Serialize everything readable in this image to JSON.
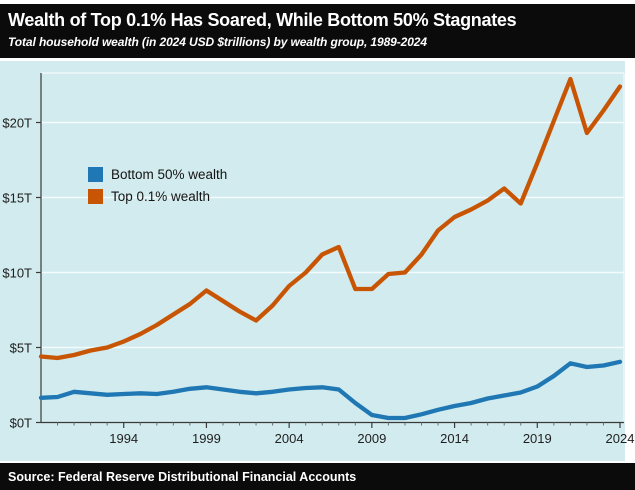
{
  "header": {
    "title": "Wealth of Top 0.1% Has Soared, While Bottom 50% Stagnates",
    "subtitle": "Total household wealth (in 2024 USD $trillions) by wealth group, 1989-2024"
  },
  "footer": {
    "source": "Source: Federal Reserve Distributional Financial Accounts"
  },
  "colors": {
    "plot_background": "#d2ebee",
    "grid": "#f4fbfc",
    "spine": "#3a3a3a",
    "bottom50": "#1f77b4",
    "top01": "#c85504",
    "bar_background": "#0b0b0b",
    "tick_text": "#1f1f1f"
  },
  "chart_data": {
    "type": "line",
    "title": "Wealth of Top 0.1% Has Soared, While Bottom 50% Stagnates",
    "subtitle": "Total household wealth (in 2024 USD $trillions) by wealth group, 1989-2024",
    "xlabel": "",
    "ylabel": "",
    "grid": true,
    "legend_position": "upper left inside",
    "xlim": [
      1989,
      2024
    ],
    "ylim": [
      0,
      23.5
    ],
    "x": [
      1989,
      1990,
      1991,
      1992,
      1993,
      1994,
      1995,
      1996,
      1997,
      1998,
      1999,
      2000,
      2001,
      2002,
      2003,
      2004,
      2005,
      2006,
      2007,
      2008,
      2009,
      2010,
      2011,
      2012,
      2013,
      2014,
      2015,
      2016,
      2017,
      2018,
      2019,
      2020,
      2021,
      2022,
      2023,
      2024
    ],
    "series": [
      {
        "name": "Bottom 50% wealth",
        "color": "#1f77b4",
        "values": [
          1.65,
          1.7,
          2.05,
          1.95,
          1.85,
          1.9,
          1.95,
          1.9,
          2.05,
          2.25,
          2.35,
          2.2,
          2.05,
          1.95,
          2.05,
          2.2,
          2.3,
          2.35,
          2.2,
          1.3,
          0.5,
          0.3,
          0.3,
          0.55,
          0.85,
          1.1,
          1.3,
          1.6,
          1.8,
          2.0,
          2.4,
          3.1,
          3.95,
          3.7,
          3.8,
          4.05
        ]
      },
      {
        "name": "Top 0.1% wealth",
        "color": "#c85504",
        "values": [
          4.4,
          4.3,
          4.5,
          4.8,
          5.0,
          5.4,
          5.9,
          6.5,
          7.2,
          7.9,
          8.8,
          8.1,
          7.4,
          6.8,
          7.8,
          9.1,
          10.0,
          11.2,
          11.7,
          8.9,
          8.9,
          9.9,
          10.0,
          11.2,
          12.8,
          13.7,
          14.2,
          14.8,
          15.6,
          14.6,
          17.3,
          20.1,
          22.9,
          19.3,
          20.8,
          22.4
        ]
      }
    ],
    "xticks": {
      "years": [
        1994,
        1999,
        2004,
        2009,
        2014,
        2019,
        2024
      ],
      "labels": [
        "1994",
        "1999",
        "2004",
        "2009",
        "2014",
        "2019",
        "2024"
      ]
    },
    "yticks": {
      "values": [
        0,
        5,
        10,
        15,
        20
      ],
      "labels": [
        "$0T",
        "$5T",
        "$10T",
        "$15T",
        "$20T"
      ]
    }
  }
}
